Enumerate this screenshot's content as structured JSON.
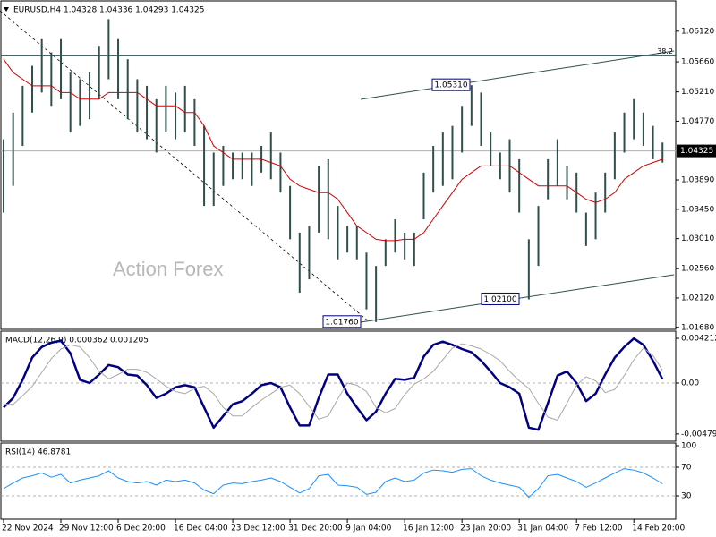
{
  "chart_data": [
    {
      "type": "range",
      "title": "EURUSD,H4  1.04328 1.04336 1.04293 1.04325",
      "watermark": "Action Forex",
      "color": "#2f4f4f",
      "categories": [
        "22 Nov 2024",
        null,
        null,
        null,
        null,
        null,
        "29 Nov 12:00",
        null,
        null,
        null,
        null,
        null,
        "6 Dec 20:00",
        null,
        null,
        null,
        null,
        null,
        "16 Dec 04:00",
        null,
        null,
        null,
        null,
        null,
        "23 Dec 12:00",
        null,
        null,
        null,
        null,
        null,
        "31 Dec 20:00",
        null,
        null,
        null,
        null,
        null,
        "9 Jan 04:00",
        null,
        null,
        null,
        null,
        null,
        "16 Jan 12:00",
        null,
        null,
        null,
        null,
        null,
        "23 Jan 20:00",
        null,
        null,
        null,
        null,
        null,
        "31 Jan 04:00",
        null,
        null,
        null,
        null,
        null,
        "7 Feb 12:00",
        null,
        null,
        null,
        null,
        null,
        "14 Feb 20:00",
        null,
        null,
        null
      ],
      "high": [
        1.045,
        1.049,
        1.053,
        1.056,
        1.06,
        1.058,
        1.06,
        1.055,
        1.054,
        1.055,
        1.059,
        1.063,
        1.06,
        1.057,
        1.054,
        1.053,
        1.051,
        1.053,
        1.052,
        1.053,
        1.051,
        1.047,
        1.043,
        1.044,
        1.043,
        1.043,
        1.043,
        1.044,
        1.046,
        1.043,
        1.038,
        1.031,
        1.032,
        1.041,
        1.042,
        1.035,
        1.032,
        1.032,
        1.028,
        1.026,
        1.03,
        1.033,
        1.031,
        1.031,
        1.04,
        1.044,
        1.046,
        1.047,
        1.05,
        1.0531,
        1.052,
        1.046,
        1.043,
        1.045,
        1.042,
        1.03,
        1.035,
        1.042,
        1.045,
        1.041,
        1.04,
        1.034,
        1.037,
        1.04,
        1.046,
        1.049,
        1.051,
        1.049,
        1.047,
        1.0445
      ],
      "low": [
        1.034,
        1.038,
        1.044,
        1.049,
        1.052,
        1.05,
        1.051,
        1.046,
        1.047,
        1.048,
        1.051,
        1.054,
        1.051,
        1.048,
        1.046,
        1.045,
        1.043,
        1.046,
        1.045,
        1.046,
        1.044,
        1.035,
        1.035,
        1.038,
        1.039,
        1.039,
        1.038,
        1.04,
        1.039,
        1.037,
        1.03,
        1.022,
        1.024,
        1.031,
        1.03,
        1.027,
        1.028,
        1.027,
        1.0195,
        1.0176,
        1.026,
        1.028,
        1.027,
        1.026,
        1.033,
        1.037,
        1.038,
        1.039,
        1.043,
        1.047,
        1.044,
        1.041,
        1.039,
        1.037,
        1.034,
        1.021,
        1.026,
        1.036,
        1.038,
        1.036,
        1.034,
        1.029,
        1.03,
        1.034,
        1.039,
        1.043,
        1.045,
        1.044,
        1.042,
        1.0415
      ],
      "ma": {
        "color": "#d00000",
        "values": [
          1.057,
          1.055,
          1.054,
          1.053,
          1.053,
          1.053,
          1.052,
          1.052,
          1.051,
          1.051,
          1.051,
          1.052,
          1.052,
          1.052,
          1.052,
          1.051,
          1.05,
          1.05,
          1.05,
          1.049,
          1.049,
          1.047,
          1.044,
          1.043,
          1.042,
          1.042,
          1.042,
          1.042,
          1.0415,
          1.041,
          1.039,
          1.038,
          1.0375,
          1.037,
          1.037,
          1.036,
          1.034,
          1.032,
          1.031,
          1.03,
          1.0298,
          1.0298,
          1.03,
          1.03,
          1.031,
          1.033,
          1.035,
          1.037,
          1.039,
          1.04,
          1.041,
          1.041,
          1.041,
          1.041,
          1.04,
          1.039,
          1.038,
          1.038,
          1.038,
          1.038,
          1.037,
          1.036,
          1.0355,
          1.036,
          1.037,
          1.039,
          1.04,
          1.041,
          1.0415,
          1.042
        ]
      },
      "ylim": [
        1.0165,
        1.0656
      ],
      "yticks": [
        {
          "value": 1.0168,
          "label": "1.01680"
        },
        {
          "value": 1.0212,
          "label": "1.02120"
        },
        {
          "value": 1.0256,
          "label": "1.02560"
        },
        {
          "value": 1.0301,
          "label": "1.03010"
        },
        {
          "value": 1.0345,
          "label": "1.03450"
        },
        {
          "value": 1.0389,
          "label": "1.03890"
        },
        {
          "value": 1.0477,
          "label": "1.04770"
        },
        {
          "value": 1.0521,
          "label": "1.05210"
        },
        {
          "value": 1.0566,
          "label": "1.05660"
        },
        {
          "value": 1.0612,
          "label": "1.06120"
        }
      ],
      "last_price": 1.04325,
      "fib": {
        "level": 38.2,
        "price": 1.0575
      },
      "annotations": [
        {
          "value": 1.0531,
          "label": "1.05310"
        },
        {
          "value": 1.021,
          "label": "1.02100"
        },
        {
          "value": 1.0176,
          "label": "1.01760"
        }
      ]
    },
    {
      "type": "line",
      "title": "MACD(12,26,9) 0.000362 0.001205",
      "series": [
        {
          "color": "#000080",
          "width": 2.5,
          "values": [
            -0.0023,
            -0.0014,
            0.0003,
            0.0024,
            0.0034,
            0.0038,
            0.004,
            0.0028,
            0.0003,
            0.0,
            0.0008,
            0.0017,
            0.0015,
            0.0008,
            0.0007,
            -0.0002,
            -0.0014,
            -0.001,
            -0.0004,
            -0.0002,
            -0.0004,
            -0.0023,
            -0.0042,
            -0.0031,
            -0.002,
            -0.0017,
            -0.001,
            -0.0002,
            0.0,
            -0.0004,
            -0.0023,
            -0.004,
            -0.004,
            -0.0014,
            0.0008,
            0.0008,
            -0.001,
            -0.0023,
            -0.0035,
            -0.0027,
            -0.001,
            0.0004,
            0.0003,
            0.0005,
            0.0025,
            0.0036,
            0.0039,
            0.0036,
            0.0032,
            0.0029,
            0.0021,
            0.0011,
            0.0,
            -0.0004,
            -0.001,
            -0.0042,
            -0.0044,
            -0.0019,
            0.0007,
            0.0011,
            0.0,
            -0.0017,
            -0.001,
            0.0008,
            0.0024,
            0.0034,
            0.0042,
            0.0036,
            0.0021,
            0.000362
          ]
        },
        {
          "color": "#a8a8a8",
          "width": 1,
          "values": [
            -0.002,
            -0.002,
            -0.0012,
            -0.0003,
            0.001,
            0.0023,
            0.0032,
            0.0036,
            0.0034,
            0.0024,
            0.0011,
            0.0004,
            0.0008,
            0.0013,
            0.0013,
            0.001,
            0.0004,
            -0.0003,
            -0.0008,
            -0.001,
            -0.0005,
            -0.0003,
            -0.001,
            -0.0023,
            -0.0031,
            -0.0031,
            -0.0023,
            -0.0016,
            -0.001,
            -0.0004,
            -0.0002,
            -0.001,
            -0.0022,
            -0.0034,
            -0.0031,
            -0.0015,
            0.0,
            -0.0002,
            -0.0008,
            -0.0023,
            -0.0028,
            -0.0024,
            -0.0011,
            -0.0001,
            0.0004,
            0.0011,
            0.0022,
            0.0033,
            0.0037,
            0.0035,
            0.0032,
            0.0027,
            0.0021,
            0.0011,
            0.0002,
            -0.0005,
            -0.0019,
            -0.0032,
            -0.0035,
            -0.0019,
            -0.0002,
            0.0006,
            0.0002,
            -0.0009,
            -0.0006,
            0.0007,
            0.0022,
            0.0033,
            0.0026,
            0.001205
          ]
        }
      ],
      "ylim": [
        -0.00548,
        0.00489
      ],
      "yticks": [
        0.004212,
        {
          "value": 0,
          "label": "0.00"
        },
        -0.004794
      ],
      "levels": [
        0
      ]
    },
    {
      "type": "line",
      "title": "RSI(14) 46.8781",
      "series": [
        {
          "color": "#1e90ff",
          "width": 1,
          "values": [
            40,
            48,
            55,
            58,
            62,
            56,
            60,
            48,
            52,
            55,
            58,
            65,
            55,
            50,
            48,
            50,
            45,
            52,
            50,
            52,
            48,
            38,
            33,
            45,
            48,
            47,
            50,
            52,
            55,
            50,
            42,
            34,
            40,
            58,
            60,
            45,
            44,
            42,
            32,
            35,
            50,
            55,
            50,
            52,
            62,
            66,
            65,
            63,
            67,
            68,
            58,
            52,
            48,
            45,
            42,
            28,
            40,
            58,
            60,
            55,
            50,
            42,
            48,
            55,
            62,
            68,
            66,
            62,
            55,
            46.8781
          ]
        }
      ],
      "ylim": [
        0,
        100
      ],
      "yticks": [
        100,
        70,
        30
      ],
      "levels": [
        70,
        30
      ]
    }
  ]
}
